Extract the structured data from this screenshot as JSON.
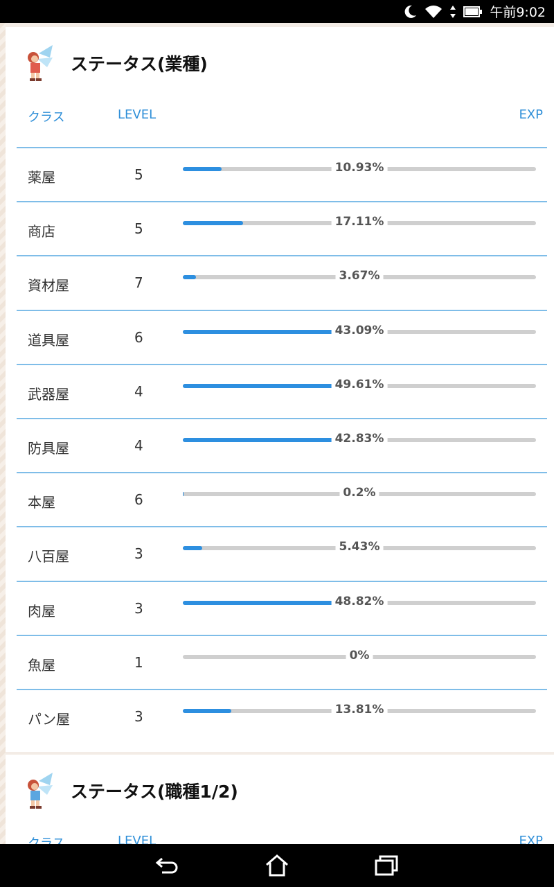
{
  "status_bar": {
    "time": "午前9:02",
    "icons": [
      "moon-icon",
      "wifi-icon",
      "data-arrows-icon",
      "battery-icon"
    ]
  },
  "card1": {
    "title": "ステータス(業種)",
    "headers": {
      "class": "クラス",
      "level": "LEVEL",
      "exp": "EXP"
    },
    "rows": [
      {
        "name": "薬屋",
        "level": "5",
        "exp_label": "10.93%",
        "exp": 10.93
      },
      {
        "name": "商店",
        "level": "5",
        "exp_label": "17.11%",
        "exp": 17.11
      },
      {
        "name": "資材屋",
        "level": "7",
        "exp_label": "3.67%",
        "exp": 3.67
      },
      {
        "name": "道具屋",
        "level": "6",
        "exp_label": "43.09%",
        "exp": 43.09
      },
      {
        "name": "武器屋",
        "level": "4",
        "exp_label": "49.61%",
        "exp": 49.61
      },
      {
        "name": "防具屋",
        "level": "4",
        "exp_label": "42.83%",
        "exp": 42.83
      },
      {
        "name": "本屋",
        "level": "6",
        "exp_label": "0.2%",
        "exp": 0.2
      },
      {
        "name": "八百屋",
        "level": "3",
        "exp_label": "5.43%",
        "exp": 5.43
      },
      {
        "name": "肉屋",
        "level": "3",
        "exp_label": "48.82%",
        "exp": 48.82
      },
      {
        "name": "魚屋",
        "level": "1",
        "exp_label": "0%",
        "exp": 0
      },
      {
        "name": "パン屋",
        "level": "3",
        "exp_label": "13.81%",
        "exp": 13.81
      }
    ]
  },
  "card2": {
    "title": "ステータス(職種1/2)",
    "headers": {
      "class": "クラス",
      "level": "LEVEL",
      "exp": "EXP"
    }
  },
  "colors": {
    "accent": "#2d8fe0",
    "header_text": "#2f8fd8",
    "track": "#cfcfcf",
    "divider": "#7fbde8"
  },
  "nav_bar": {
    "buttons": [
      "back-icon",
      "home-icon",
      "recent-apps-icon"
    ]
  }
}
